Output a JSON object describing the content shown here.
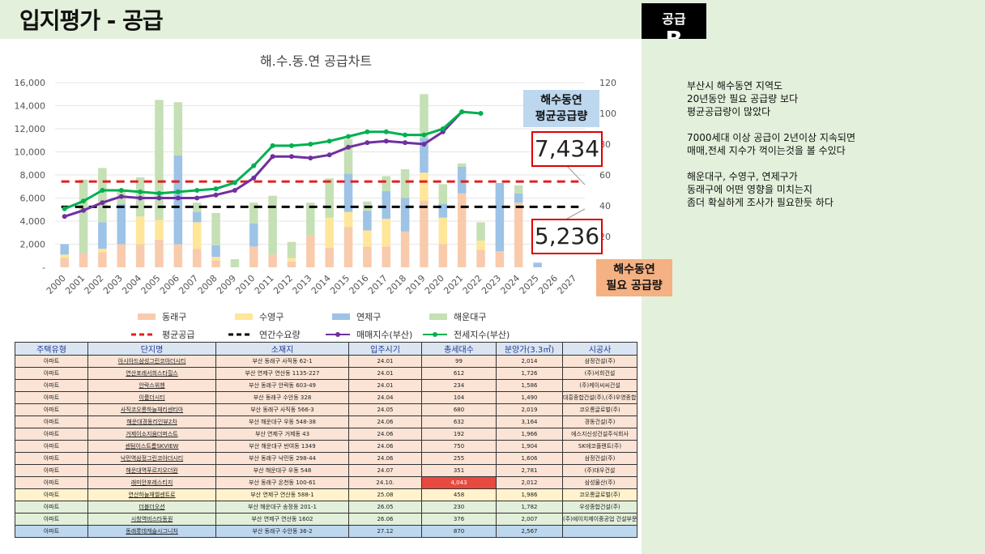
{
  "page": {
    "title": "입지평가 - 공급",
    "badge_line1": "공급",
    "badge_line2": "B"
  },
  "notes": {
    "p1": [
      "부산시 해수동연 지역도",
      "20년동안 필요 공급량 보다",
      "평균공급량이 많았다"
    ],
    "p2": [
      "7000세대 이상 공급이 2년이상 지속되면",
      "매매,전세 지수가 꺽이는것을 볼 수있다"
    ],
    "p3": [
      "해운대구, 수영구, 연제구가",
      "동래구에 어떤 영향을 미치는지",
      "좀더 확실하게 조사가 필요한듯 하다"
    ]
  },
  "annotations": {
    "avg_label_line1": "해수동연",
    "avg_label_line2": "평균공급량",
    "avg_value": "7,434",
    "need_value": "5,236",
    "need_label_line1": "해수동연",
    "need_label_line2": "필요 공급량"
  },
  "chart_data": {
    "type": "bar",
    "title": "해.수.동.연 공급차트",
    "categories": [
      "2000",
      "2001",
      "2002",
      "2003",
      "2004",
      "2005",
      "2006",
      "2007",
      "2008",
      "2009",
      "2010",
      "2011",
      "2012",
      "2013",
      "2014",
      "2015",
      "2016",
      "2017",
      "2018",
      "2019",
      "2020",
      "2021",
      "2022",
      "2023",
      "2024",
      "2025",
      "2026",
      "2027"
    ],
    "stacked": true,
    "left_ylim": [
      0,
      16000
    ],
    "left_yticks": [
      "-",
      "2,000",
      "4,000",
      "6,000",
      "8,000",
      "10,000",
      "12,000",
      "14,000",
      "16,000"
    ],
    "right_ylim": [
      0,
      120
    ],
    "right_yticks": [
      "20",
      "40",
      "60",
      "80",
      "100",
      "120"
    ],
    "colors": {
      "동래구": "#f8cbad",
      "수영구": "#ffe699",
      "연제구": "#9dc3e6",
      "해운대구": "#c5e0b4",
      "평균공급": "#e02020",
      "연간수요량": "#000000",
      "매매지수(부산)": "#7030a0",
      "전세지수(부산)": "#00b050"
    },
    "series": [
      {
        "name": "동래구",
        "values": [
          800,
          1200,
          1300,
          2000,
          2000,
          2400,
          2000,
          1600,
          600,
          0,
          1800,
          1100,
          500,
          2800,
          1700,
          3500,
          1800,
          1800,
          3100,
          5800,
          2000,
          6400,
          1500,
          1400,
          5600,
          0,
          0,
          0
        ]
      },
      {
        "name": "수영구",
        "values": [
          300,
          0,
          300,
          0,
          2400,
          1700,
          0,
          2300,
          300,
          0,
          0,
          0,
          300,
          0,
          2600,
          1300,
          1400,
          2400,
          0,
          2400,
          2300,
          0,
          800,
          0,
          0,
          0,
          0,
          0
        ]
      },
      {
        "name": "연제구",
        "values": [
          900,
          0,
          2300,
          3500,
          0,
          0,
          7700,
          900,
          1000,
          0,
          2000,
          0,
          0,
          0,
          0,
          3300,
          1700,
          2400,
          2900,
          3000,
          1200,
          2300,
          0,
          5900,
          800,
          400,
          0,
          0
        ]
      },
      {
        "name": "해운대구",
        "values": [
          0,
          6400,
          4700,
          1200,
          3400,
          10400,
          4600,
          800,
          2800,
          700,
          1800,
          5100,
          1400,
          2800,
          3400,
          3000,
          800,
          1300,
          2500,
          3800,
          1700,
          300,
          1600,
          0,
          700,
          0,
          0,
          0
        ]
      },
      {
        "name": "평균공급",
        "values": [
          7434,
          7434,
          7434,
          7434,
          7434,
          7434,
          7434,
          7434,
          7434,
          7434,
          7434,
          7434,
          7434,
          7434,
          7434,
          7434,
          7434,
          7434,
          7434,
          7434,
          7434,
          7434,
          7434,
          7434,
          7434,
          7434,
          7434,
          7434
        ]
      },
      {
        "name": "연간수요량",
        "values": [
          5236,
          5236,
          5236,
          5236,
          5236,
          5236,
          5236,
          5236,
          5236,
          5236,
          5236,
          5236,
          5236,
          5236,
          5236,
          5236,
          5236,
          5236,
          5236,
          5236,
          5236,
          5236,
          5236,
          5236,
          5236,
          5236,
          5236,
          5236
        ]
      },
      {
        "name": "매매지수(부산)",
        "axis": "right",
        "values": [
          33,
          37,
          42,
          46,
          45,
          45,
          45,
          45,
          47,
          50,
          58,
          72,
          72,
          71,
          73,
          78,
          81,
          82,
          81,
          80,
          88,
          101,
          null,
          null,
          null,
          null,
          null,
          null
        ]
      },
      {
        "name": "전세지수(부산)",
        "axis": "right",
        "values": [
          38,
          43,
          50,
          50,
          49,
          48,
          49,
          50,
          51,
          55,
          66,
          79,
          79,
          80,
          82,
          85,
          88,
          88,
          86,
          86,
          90,
          101,
          100,
          null,
          null,
          null,
          null,
          null
        ]
      }
    ]
  },
  "table": {
    "headers": [
      "주택유형",
      "단지명",
      "소재지",
      "입주시기",
      "총세대수",
      "분양가(3.3㎡)",
      "시공사"
    ],
    "rows": [
      [
        "아파트",
        "아시아드삼성그린코아더시티",
        "부산 동래구 사직동 62-1",
        "24.01",
        "99",
        "2,014",
        "삼정건설(주)"
      ],
      [
        "아파트",
        "연산포레서희스타힐스",
        "부산 연제구 연산동 1135-227",
        "24.01",
        "612",
        "1,726",
        "(주)서희건설"
      ],
      [
        "아파트",
        "안락스위첸",
        "부산 동래구 안락동 603-49",
        "24.01",
        "234",
        "1,586",
        "(주)케이씨씨건설"
      ],
      [
        "아파트",
        "이룸더시티",
        "부산 동래구 수안동 328",
        "24.04",
        "104",
        "1,490",
        "대흥종합건설(주),(주)우영종합건설"
      ],
      [
        "아파트",
        "사직코오롱하늘채리센티아",
        "부산 동래구 사직동 566-3",
        "24.05",
        "680",
        "2,019",
        "코오롱글로벌(주)"
      ],
      [
        "아파트",
        "해운대경동리인뷰2차",
        "부산 해운대구 우동 548-38",
        "24.06",
        "632",
        "3,164",
        "경동건설(주)"
      ],
      [
        "아파트",
        "거제이소지움더퍼스트",
        "부산 연제구 거제동 43",
        "24.06",
        "192",
        "1,966",
        "에스지신성건설주식회사"
      ],
      [
        "아파트",
        "센텀이스트름SKVIEW",
        "부산 해운대구 반여동 1349",
        "24.06",
        "750",
        "1,904",
        "SK에코플랜트(주)"
      ],
      [
        "아파트",
        "낙민역삼정그린코아더시티",
        "부산 동래구 낙민동 298-44",
        "24.06",
        "255",
        "1,606",
        "삼정건설(주)"
      ],
      [
        "아파트",
        "해운대역푸르지오더원",
        "부산 해운대구 우동 548",
        "24.07",
        "351",
        "2,781",
        "(주)대우건설"
      ],
      [
        "아파트",
        "래미안포레스티지",
        "부산 동래구 온천동 100-61",
        "24.10.",
        "4,043",
        "2,012",
        "삼성물산(주)"
      ],
      [
        "아파트",
        "연산하늘채엘센트로",
        "부산 연제구 연산동 588-1",
        "25.08",
        "458",
        "1,986",
        "코오롱글로벌(주)"
      ],
      [
        "아파트",
        "더블더오션",
        "부산 해운대구 송정동 201-1",
        "26.05",
        "230",
        "1,782",
        "우성종합건설(주)"
      ],
      [
        "아파트",
        "시청역비스타동원",
        "부산 연제구 연산동 1602",
        "26.06",
        "376",
        "2,007",
        "(주)에이치제이중공업 건설부문"
      ],
      [
        "아파트",
        "동래롯데캐슬시그니처",
        "부산 동래구 수안동 36-2",
        "27.12",
        "870",
        "2,567",
        ""
      ]
    ]
  }
}
